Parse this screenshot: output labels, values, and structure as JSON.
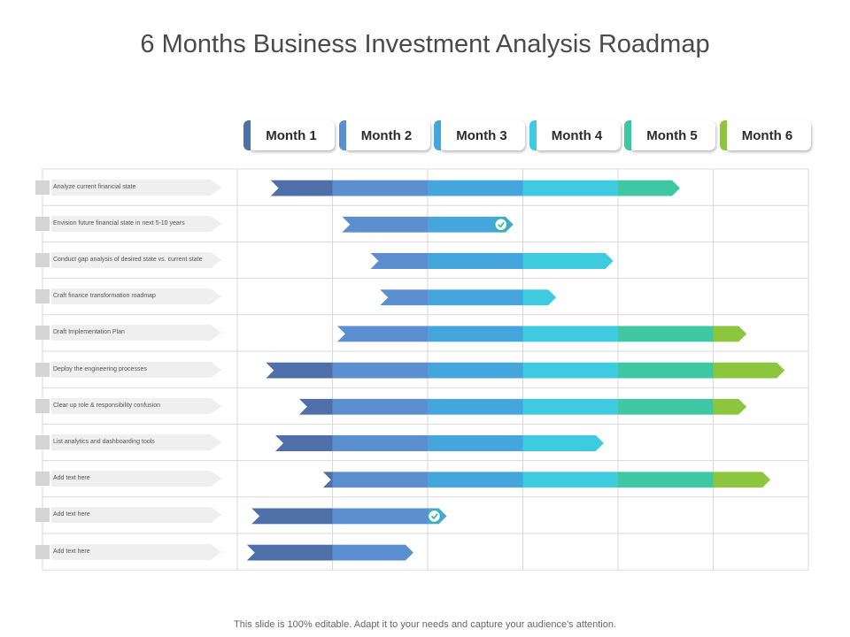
{
  "title": "6 Months Business Investment Analysis Roadmap",
  "months": [
    {
      "label": "Month 1",
      "color": "#4f6fa8"
    },
    {
      "label": "Month 2",
      "color": "#5b8fd0"
    },
    {
      "label": "Month 3",
      "color": "#45a6de"
    },
    {
      "label": "Month 4",
      "color": "#3ecbe0"
    },
    {
      "label": "Month 5",
      "color": "#3fc7a3"
    },
    {
      "label": "Month 6",
      "color": "#8cc63f"
    }
  ],
  "tasks": [
    {
      "label": "Analyze current financial state",
      "start": 0.35,
      "end": 4.65,
      "milestone": false
    },
    {
      "label": "Envision future financial state in next 5-10 years",
      "start": 1.1,
      "end": 2.9,
      "milestone": true
    },
    {
      "label": "Conduct gap analysis of desired state vs. current state",
      "start": 1.4,
      "end": 3.95,
      "milestone": false
    },
    {
      "label": "Craft finance transformation roadmap",
      "start": 1.5,
      "end": 3.35,
      "milestone": false
    },
    {
      "label": "Draft Implementation Plan",
      "start": 1.05,
      "end": 5.35,
      "milestone": false
    },
    {
      "label": "Deploy the engineering processes",
      "start": 0.3,
      "end": 5.75,
      "milestone": false
    },
    {
      "label": "Clear up role & responsibility confusion",
      "start": 0.65,
      "end": 5.35,
      "milestone": false
    },
    {
      "label": "List analytics and dashboarding tools",
      "start": 0.4,
      "end": 3.85,
      "milestone": false
    },
    {
      "label": "Add text here",
      "start": 0.9,
      "end": 5.6,
      "milestone": false
    },
    {
      "label": "Add text here",
      "start": 0.15,
      "end": 2.2,
      "milestone": true
    },
    {
      "label": "Add text here",
      "start": 0.1,
      "end": 1.85,
      "milestone": false
    }
  ],
  "footer": "This slide is 100% editable. Adapt it to your needs and capture your audience's attention."
}
